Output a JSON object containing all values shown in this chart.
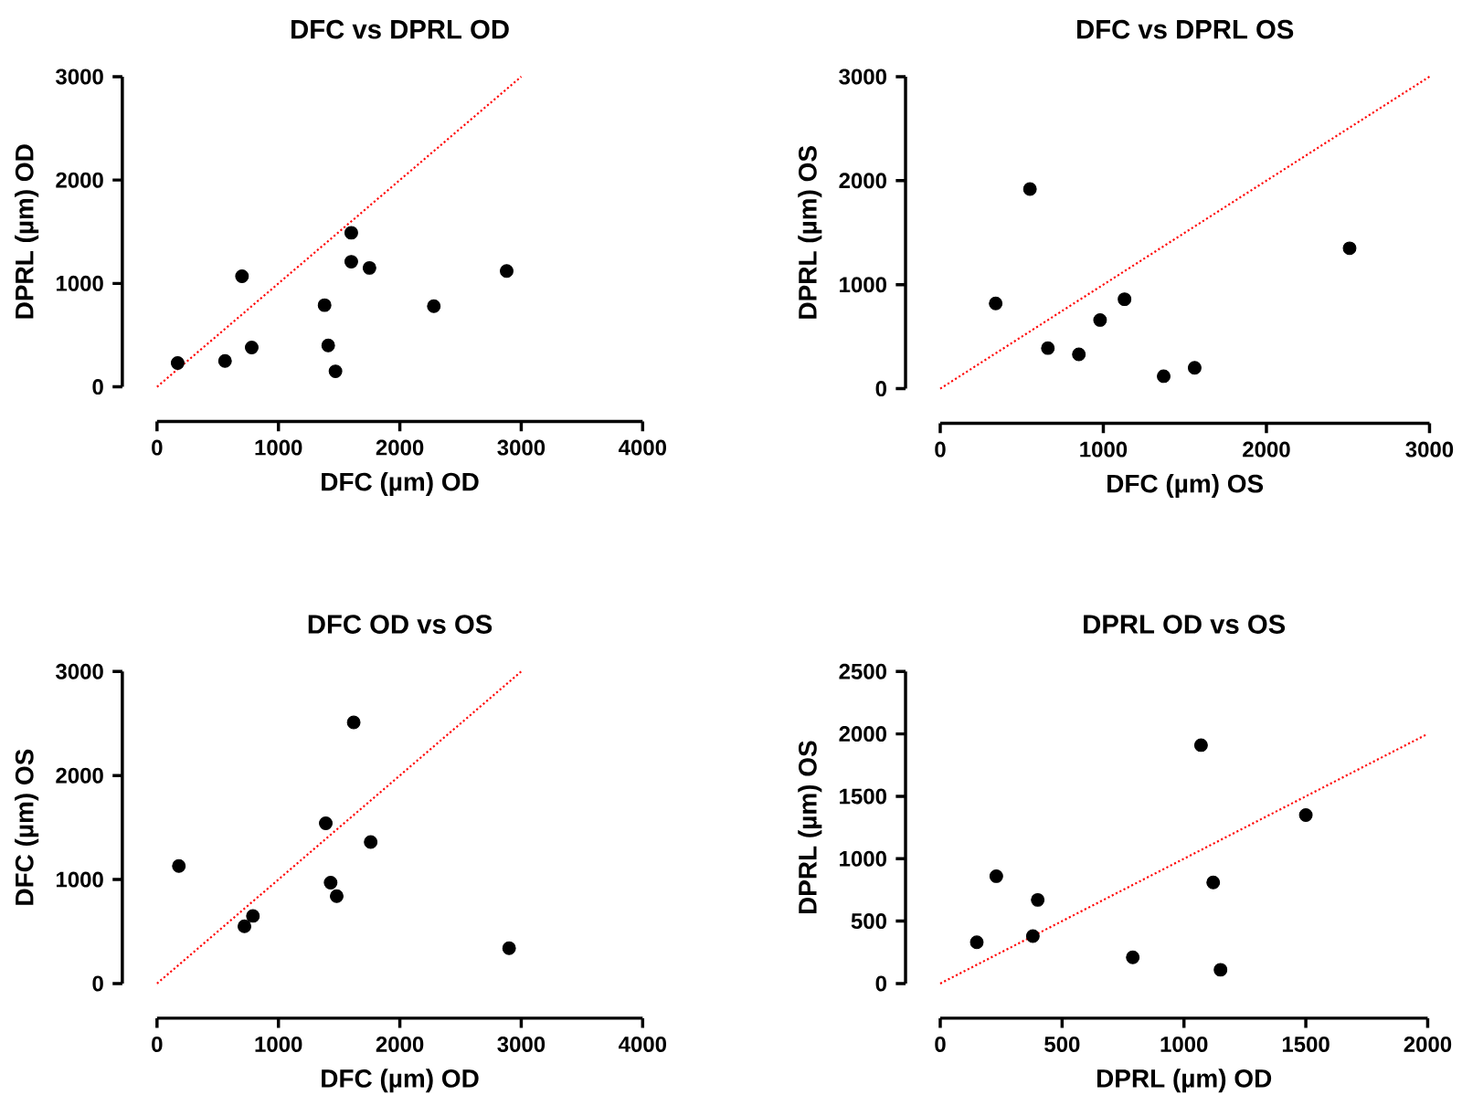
{
  "chart_data": [
    {
      "type": "scatter",
      "title": "DFC vs DPRL OD",
      "xlabel": "DFC (µm) OD",
      "ylabel": "DPRL (µm) OD",
      "xlim": [
        0,
        4000
      ],
      "ylim": [
        0,
        3000
      ],
      "xticks": [
        0,
        1000,
        2000,
        3000,
        4000
      ],
      "yticks": [
        0,
        1000,
        2000,
        3000
      ],
      "marker": "circle",
      "series": [
        {
          "color": "#000000",
          "x": [
            170,
            560,
            700,
            780,
            1380,
            1410,
            1470,
            1600,
            1600,
            1750,
            2280,
            2880
          ],
          "values": [
            230,
            250,
            1070,
            380,
            790,
            400,
            150,
            1490,
            1210,
            1150,
            780,
            1120
          ]
        },
        {
          "type": "line",
          "color": "#ff0000",
          "line_style": "dotted",
          "marker": "none",
          "x": [
            0,
            3000
          ],
          "values": [
            0,
            3000
          ]
        }
      ]
    },
    {
      "type": "scatter",
      "title": "DFC vs DPRL OS",
      "xlabel": "DFC (µm) OS",
      "ylabel": "DPRL (µm) OS",
      "xlim": [
        0,
        3000
      ],
      "ylim": [
        0,
        3000
      ],
      "xticks": [
        0,
        1000,
        2000,
        3000
      ],
      "yticks": [
        0,
        1000,
        2000,
        3000
      ],
      "marker": "circle",
      "series": [
        {
          "color": "#000000",
          "x": [
            340,
            550,
            660,
            850,
            980,
            1130,
            1370,
            1560,
            2510
          ],
          "values": [
            820,
            1920,
            390,
            330,
            660,
            860,
            120,
            200,
            1350
          ]
        },
        {
          "type": "line",
          "color": "#ff0000",
          "line_style": "dotted",
          "marker": "none",
          "x": [
            0,
            3000
          ],
          "values": [
            0,
            3000
          ]
        }
      ]
    },
    {
      "type": "scatter",
      "title": "DFC OD vs OS",
      "xlabel": "DFC (µm) OD",
      "ylabel": "DFC (µm) OS",
      "xlim": [
        0,
        4000
      ],
      "ylim": [
        0,
        3000
      ],
      "xticks": [
        0,
        1000,
        2000,
        3000,
        4000
      ],
      "yticks": [
        0,
        1000,
        2000,
        3000
      ],
      "marker": "circle",
      "series": [
        {
          "color": "#000000",
          "x": [
            180,
            720,
            790,
            1390,
            1430,
            1480,
            1620,
            1760,
            2900
          ],
          "values": [
            1130,
            550,
            650,
            1540,
            970,
            840,
            2510,
            1360,
            340
          ]
        },
        {
          "type": "line",
          "color": "#ff0000",
          "line_style": "dotted",
          "marker": "none",
          "x": [
            0,
            3000
          ],
          "values": [
            0,
            3000
          ]
        }
      ]
    },
    {
      "type": "scatter",
      "title": "DPRL OD vs OS",
      "xlabel": "DPRL (µm) OD",
      "ylabel": "DPRL (µm) OS",
      "xlim": [
        0,
        2000
      ],
      "ylim": [
        0,
        2500
      ],
      "xticks": [
        0,
        500,
        1000,
        1500,
        2000
      ],
      "yticks": [
        0,
        500,
        1000,
        1500,
        2000,
        2500
      ],
      "marker": "circle",
      "series": [
        {
          "color": "#000000",
          "x": [
            150,
            230,
            380,
            400,
            790,
            1070,
            1120,
            1150,
            1500
          ],
          "values": [
            330,
            860,
            380,
            670,
            210,
            1910,
            810,
            110,
            1350
          ]
        },
        {
          "type": "line",
          "color": "#ff0000",
          "line_style": "dotted",
          "marker": "none",
          "x": [
            0,
            2000
          ],
          "values": [
            0,
            2000
          ]
        }
      ]
    }
  ]
}
